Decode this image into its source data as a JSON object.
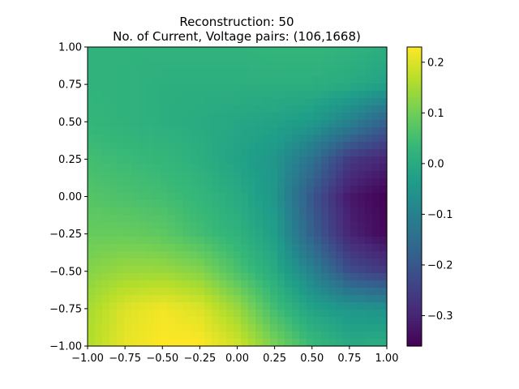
{
  "chart_data": {
    "type": "heatmap",
    "title": "Reconstruction: 50",
    "subtitle": "No. of Current, Voltage pairs: (106,1668)",
    "xlabel": "",
    "ylabel": "",
    "xlim": [
      -1.0,
      1.0
    ],
    "ylim": [
      -1.0,
      1.0
    ],
    "x_tick_labels": [
      "−1.00",
      "−0.75",
      "−0.50",
      "−0.25",
      "0.00",
      "0.25",
      "0.50",
      "0.75",
      "1.00"
    ],
    "x_tick_values": [
      -1.0,
      -0.75,
      -0.5,
      -0.25,
      0.0,
      0.25,
      0.5,
      0.75,
      1.0
    ],
    "y_tick_labels": [
      "−1.00",
      "−0.75",
      "−0.50",
      "−0.25",
      "0.00",
      "0.25",
      "0.50",
      "0.75",
      "1.00"
    ],
    "y_tick_values": [
      -1.0,
      -0.75,
      -0.5,
      -0.25,
      0.0,
      0.25,
      0.5,
      0.75,
      1.0
    ],
    "colorbar": {
      "range": [
        -0.36,
        0.23
      ],
      "tick_labels": [
        "−0.3",
        "−0.2",
        "−0.1",
        "0.0",
        "0.1",
        "0.2"
      ],
      "tick_values": [
        -0.3,
        -0.2,
        -0.1,
        0.0,
        0.1,
        0.2
      ],
      "colormap": "viridis"
    },
    "grid": false,
    "field_description": {
      "x": [
        -1.0,
        -0.75,
        -0.5,
        -0.25,
        0.0,
        0.25,
        0.5,
        0.75,
        1.0
      ],
      "y": [
        1.0,
        0.75,
        0.5,
        0.25,
        0.0,
        -0.25,
        -0.5,
        -0.75,
        -1.0
      ],
      "values": [
        [
          0.02,
          0.02,
          0.02,
          0.02,
          0.02,
          0.03,
          0.03,
          0.02,
          0.01
        ],
        [
          0.02,
          0.02,
          0.01,
          0.01,
          0.01,
          0.01,
          0.01,
          0.0,
          -0.02
        ],
        [
          0.03,
          0.02,
          0.01,
          0.0,
          -0.01,
          -0.02,
          -0.04,
          -0.1,
          -0.18
        ],
        [
          0.05,
          0.04,
          0.03,
          0.01,
          -0.02,
          -0.05,
          -0.14,
          -0.26,
          -0.3
        ],
        [
          0.07,
          0.06,
          0.05,
          0.03,
          0.0,
          -0.05,
          -0.2,
          -0.32,
          -0.36
        ],
        [
          0.09,
          0.09,
          0.08,
          0.05,
          0.02,
          -0.03,
          -0.18,
          -0.3,
          -0.35
        ],
        [
          0.12,
          0.14,
          0.14,
          0.12,
          0.06,
          0.0,
          -0.1,
          -0.22,
          -0.26
        ],
        [
          0.15,
          0.2,
          0.22,
          0.2,
          0.14,
          0.05,
          -0.02,
          -0.05,
          -0.06
        ],
        [
          0.16,
          0.21,
          0.23,
          0.23,
          0.19,
          0.11,
          0.04,
          0.0,
          0.01
        ]
      ]
    }
  }
}
